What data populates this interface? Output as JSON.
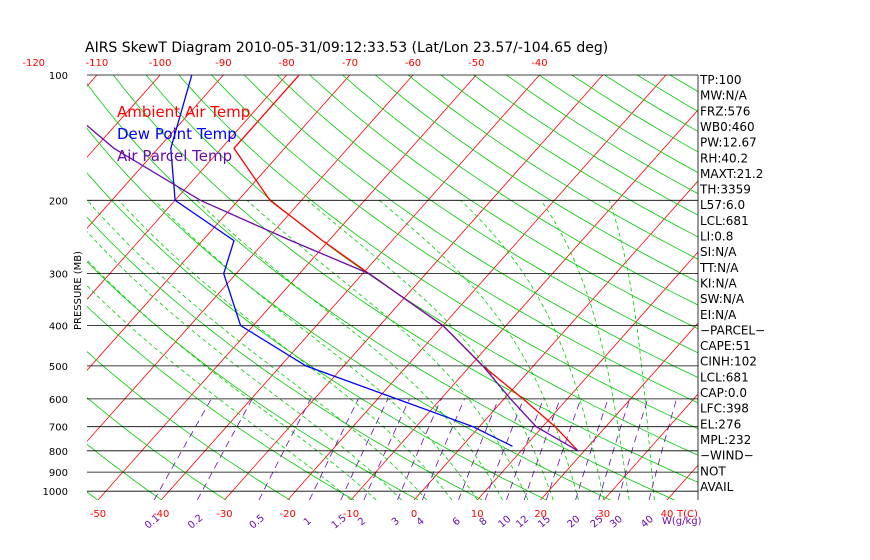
{
  "chart_data": {
    "type": "line",
    "title": "AIRS SkewT Diagram 2010-05-31/09:12:33.53 (Lat/Lon 23.57/-104.65 deg)",
    "ylabel": "PRESSURE (MB)",
    "y_scale": "log",
    "ylim": [
      1050,
      100
    ],
    "xlim_bottom_celsius": [
      -55,
      45
    ],
    "xlim_top_celsius": [
      -125,
      -38
    ],
    "pressure_ticks": [
      "100",
      "200",
      "300",
      "400",
      "500",
      "600",
      "700",
      "800",
      "900",
      "1000"
    ],
    "bottom_temp_ticks": [
      "-50",
      "-40",
      "-30",
      "-20",
      "-10",
      "0",
      "10",
      "20",
      "30",
      "40"
    ],
    "bottom_axis_unit": "T(C)",
    "top_temp_ticks": [
      "-120",
      "-110",
      "-100",
      "-90",
      "-80",
      "-70",
      "-60",
      "-50",
      "-40"
    ],
    "mixing_ratio_ticks": [
      "0.1",
      "0.2",
      "0.5",
      "1",
      "1.5",
      "2",
      "3",
      "4",
      "6",
      "8",
      "10",
      "12",
      "15",
      "20",
      "25",
      "30",
      "40"
    ],
    "mixing_ratio_unit": "W(g/kg)",
    "legend": [
      "Ambient Air Temp",
      "Dew Point Temp",
      "Air Parcel Temp"
    ],
    "grid": true,
    "colors": {
      "ambient": "#ff0000",
      "dewpoint": "#0000ff",
      "parcel": "#6a0dad",
      "isotherm": "#ff0000",
      "dry_adiabat": "#00cc00",
      "moist_adiabat": "#00cc00",
      "mixing_ratio": "#6a0dad",
      "isobar": "#000000"
    },
    "series": [
      {
        "name": "Ambient Air Temp",
        "points": [
          {
            "p": 100,
            "t": -78
          },
          {
            "p": 150,
            "t": -78
          },
          {
            "p": 200,
            "t": -65
          },
          {
            "p": 250,
            "t": -51
          },
          {
            "p": 300,
            "t": -39
          },
          {
            "p": 400,
            "t": -20
          },
          {
            "p": 500,
            "t": -8
          },
          {
            "p": 600,
            "t": 3
          },
          {
            "p": 700,
            "t": 12
          },
          {
            "p": 800,
            "t": 19
          }
        ]
      },
      {
        "name": "Dew Point Temp",
        "points": [
          {
            "p": 100,
            "t": -95
          },
          {
            "p": 150,
            "t": -88
          },
          {
            "p": 200,
            "t": -80
          },
          {
            "p": 250,
            "t": -65
          },
          {
            "p": 300,
            "t": -62
          },
          {
            "p": 400,
            "t": -52
          },
          {
            "p": 500,
            "t": -36
          },
          {
            "p": 600,
            "t": -17
          },
          {
            "p": 700,
            "t": -1
          },
          {
            "p": 780,
            "t": 8
          }
        ]
      },
      {
        "name": "Air Parcel Temp",
        "points": [
          {
            "p": 100,
            "t": -121
          },
          {
            "p": 150,
            "t": -97
          },
          {
            "p": 200,
            "t": -76
          },
          {
            "p": 250,
            "t": -56
          },
          {
            "p": 300,
            "t": -39
          },
          {
            "p": 400,
            "t": -20
          },
          {
            "p": 500,
            "t": -8
          },
          {
            "p": 600,
            "t": 1
          },
          {
            "p": 700,
            "t": 9
          },
          {
            "p": 800,
            "t": 19
          }
        ]
      }
    ]
  },
  "side_panel": [
    "TP:100",
    "MW:N/A",
    "FRZ:576",
    "WB0:460",
    "PW:12.67",
    "RH:40.2",
    "MAXT:21.2",
    "TH:3359",
    "L57:6.0",
    "LCL:681",
    "LI:0.8",
    "SI:N/A",
    "TT:N/A",
    "KI:N/A",
    "SW:N/A",
    "EI:N/A",
    "−PARCEL−",
    "CAPE:51",
    "CINH:102",
    "LCL:681",
    "CAP:0.0",
    "LFC:398",
    "EL:276",
    "MPL:232",
    "−WIND−",
    "NOT",
    "AVAIL"
  ]
}
